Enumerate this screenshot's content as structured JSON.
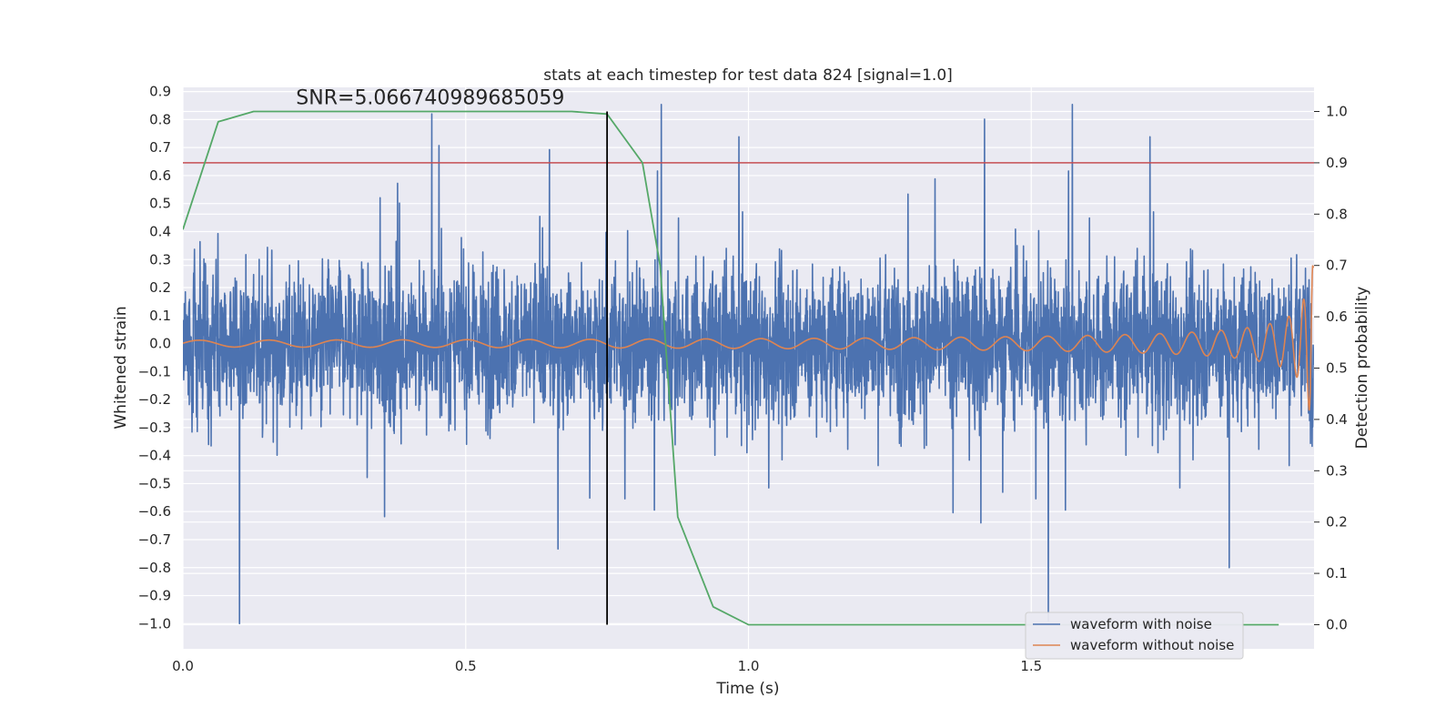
{
  "chart_data": {
    "type": "line",
    "title": "stats at each timestep for test data 824 [signal=1.0]",
    "xlabel": "Time (s)",
    "ylabel": "Whitened strain",
    "y2label": "Detection probability",
    "xlim": [
      0.0,
      2.0
    ],
    "ylim": [
      -1.09,
      0.915
    ],
    "y2lim": [
      -0.047,
      1.047
    ],
    "grid": true,
    "x_ticks": [
      0.0,
      0.5,
      1.0,
      1.5
    ],
    "x_tick_labels": [
      "0.0",
      "0.5",
      "1.0",
      "1.5"
    ],
    "y_ticks": [
      0.9,
      0.8,
      0.7,
      0.6,
      0.5,
      0.4,
      0.3,
      0.2,
      0.1,
      0.0,
      -0.1,
      -0.2,
      -0.3,
      -0.4,
      -0.5,
      -0.6,
      -0.7,
      -0.8,
      -0.9,
      -1.0
    ],
    "y_tick_labels": [
      "0.9",
      "0.8",
      "0.7",
      "0.6",
      "0.5",
      "0.4",
      "0.3",
      "0.2",
      "0.1",
      "0.0",
      "−0.1",
      "−0.2",
      "−0.3",
      "−0.4",
      "−0.5",
      "−0.6",
      "−0.7",
      "−0.8",
      "−0.9",
      "−1.0"
    ],
    "y2_ticks": [
      1.0,
      0.9,
      0.8,
      0.7,
      0.6,
      0.5,
      0.4,
      0.3,
      0.2,
      0.1,
      0.0
    ],
    "y2_tick_labels": [
      "1.0",
      "0.9",
      "0.8",
      "0.7",
      "0.6",
      "0.5",
      "0.4",
      "0.3",
      "0.2",
      "0.1",
      "0.0"
    ],
    "annotation": "SNR=5.066740989685059",
    "annotation_pos": {
      "x": 0.2,
      "y": 0.855
    },
    "legend": {
      "placement": "lower-right",
      "entries": [
        {
          "label": "waveform with noise",
          "color": "#4c72b0"
        },
        {
          "label": "waveform without noise",
          "color": "#dd8452"
        }
      ]
    },
    "series": [
      {
        "name": "waveform with noise",
        "axis": "left",
        "color": "#4c72b0",
        "kind": "noise",
        "x_range": [
          0.0,
          2.0
        ],
        "n_points": 4096,
        "mean": 0.0,
        "std": 0.27,
        "peaks": [
          [
            0.1,
            -1.0
          ],
          [
            0.44,
            0.82
          ],
          [
            1.53,
            -0.99
          ],
          [
            1.85,
            -0.8
          ]
        ]
      },
      {
        "name": "waveform without noise",
        "axis": "left",
        "color": "#dd8452",
        "kind": "chirp",
        "x_range": [
          0.0,
          2.0
        ],
        "t_merge": 2.0,
        "start_frequency_hz": 5,
        "start_amplitude": 0.012,
        "end_amplitude": 0.28
      },
      {
        "name": "detection probability",
        "axis": "right",
        "color": "#55a868",
        "x": [
          0.0,
          0.0625,
          0.125,
          0.1875,
          0.25,
          0.3125,
          0.375,
          0.4375,
          0.5,
          0.5625,
          0.625,
          0.6875,
          0.75,
          0.8125,
          0.8438,
          0.875,
          0.9375,
          1.0,
          1.0625,
          1.125,
          1.25,
          1.5,
          1.75,
          1.9375
        ],
        "y": [
          0.77,
          0.98,
          1.0,
          1.0,
          1.0,
          1.0,
          1.0,
          1.0,
          1.0,
          1.0,
          1.0,
          1.0,
          0.995,
          0.9,
          0.7,
          0.21,
          0.035,
          0.0,
          0.0,
          0.0,
          0.0,
          0.0,
          0.0,
          0.0
        ]
      }
    ],
    "hlines": [
      {
        "axis": "right",
        "value": 0.9,
        "color": "#c44e52"
      }
    ],
    "vlines": [
      {
        "x": 0.75,
        "axis": "right",
        "ymin": 0.0,
        "ymax": 1.0,
        "color": "#000000"
      }
    ]
  }
}
